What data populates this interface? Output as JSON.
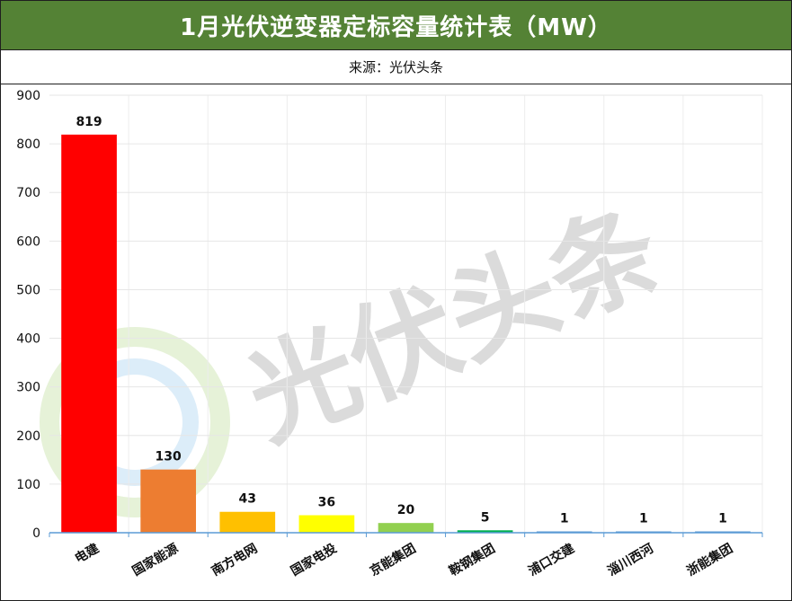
{
  "title": "1月光伏逆变器定标容量统计表（MW）",
  "source": "来源：光伏头条",
  "watermark": "光伏头条",
  "chart_data": {
    "type": "bar",
    "categories": [
      "电建",
      "国家能源",
      "南方电网",
      "国家电投",
      "京能集团",
      "鞍钢集团",
      "浦口交建",
      "淄川西河",
      "浙能集团"
    ],
    "values": [
      819,
      130,
      43,
      36,
      20,
      5,
      1,
      1,
      1
    ],
    "colors": [
      "#ff0000",
      "#ed7d31",
      "#ffc000",
      "#ffff00",
      "#92d050",
      "#00b050",
      "#5b9bd5",
      "#5b9bd5",
      "#5b9bd5"
    ],
    "ylim": [
      0,
      900
    ],
    "yticks": [
      0,
      100,
      200,
      300,
      400,
      500,
      600,
      700,
      800,
      900
    ],
    "grid": true,
    "data_labels": true
  }
}
